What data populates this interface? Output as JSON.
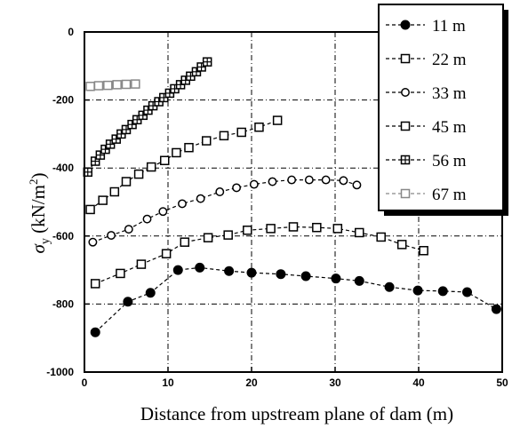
{
  "chart_data": {
    "type": "scatter",
    "xlabel": "Distance from upstream plane of dam (m)",
    "ylabel_symbol": "σ",
    "ylabel_subscript": "y",
    "ylabel_units_prefix": " (kN/m",
    "ylabel_units_sup": "2",
    "ylabel_units_suffix": ")",
    "xlim": [
      0,
      50
    ],
    "ylim": [
      -1000,
      0
    ],
    "x_ticks": [
      "0",
      "10",
      "20",
      "30",
      "40",
      "50"
    ],
    "y_ticks": [
      "0",
      "-200",
      "-400",
      "-600",
      "-800",
      "-1000"
    ],
    "grid": "dash-dot",
    "legend_position": "top-right",
    "series": [
      {
        "name": "11 m",
        "marker": "filled-circle",
        "color": "#000000",
        "x": [
          1.3,
          5.2,
          7.9,
          11.2,
          13.8,
          17.3,
          20.0,
          23.5,
          26.5,
          30.1,
          32.9,
          36.5,
          39.9,
          42.9,
          45.8,
          49.3
        ],
        "y": [
          -883,
          -793,
          -767,
          -700,
          -693,
          -703,
          -708,
          -712,
          -718,
          -725,
          -732,
          -750,
          -760,
          -762,
          -765,
          -815
        ]
      },
      {
        "name": "22 m",
        "marker": "open-square",
        "color": "#000000",
        "x": [
          1.3,
          4.3,
          6.8,
          9.8,
          12.0,
          14.8,
          17.2,
          19.5,
          22.3,
          25.0,
          27.8,
          30.3,
          32.9,
          35.5,
          38.0,
          40.6
        ],
        "y": [
          -740,
          -710,
          -683,
          -652,
          -618,
          -605,
          -597,
          -583,
          -578,
          -573,
          -575,
          -578,
          -590,
          -603,
          -625,
          -643
        ]
      },
      {
        "name": "33 m",
        "marker": "open-circle",
        "color": "#000000",
        "x": [
          1.0,
          3.2,
          5.3,
          7.5,
          9.4,
          11.7,
          13.9,
          16.2,
          18.2,
          20.3,
          22.5,
          24.8,
          26.9,
          28.9,
          31.0,
          32.6
        ],
        "y": [
          -618,
          -598,
          -580,
          -550,
          -528,
          -505,
          -490,
          -470,
          -458,
          -448,
          -440,
          -435,
          -435,
          -435,
          -437,
          -450
        ]
      },
      {
        "name": "45 m",
        "marker": "open-square",
        "color": "#000000",
        "x": [
          0.7,
          2.2,
          3.6,
          5.0,
          6.5,
          8.0,
          9.6,
          11.0,
          12.5,
          14.6,
          16.7,
          18.8,
          20.9,
          23.1
        ],
        "y": [
          -522,
          -495,
          -470,
          -440,
          -418,
          -397,
          -378,
          -355,
          -340,
          -320,
          -305,
          -295,
          -280,
          -260
        ]
      },
      {
        "name": "56 m",
        "marker": "boxed-plus",
        "color": "#000000",
        "x": [
          0.4,
          1.3,
          1.9,
          2.5,
          3.1,
          3.8,
          4.4,
          5.0,
          5.7,
          6.3,
          7.0,
          7.6,
          8.2,
          8.9,
          9.5,
          10.2,
          10.8,
          11.5,
          12.1,
          12.7,
          13.4,
          14.0,
          14.7
        ],
        "y": [
          -412,
          -380,
          -362,
          -345,
          -330,
          -315,
          -300,
          -287,
          -272,
          -258,
          -245,
          -230,
          -217,
          -205,
          -193,
          -180,
          -167,
          -155,
          -142,
          -130,
          -117,
          -103,
          -88
        ]
      },
      {
        "name": "67 m",
        "marker": "open-square",
        "color": "#888888",
        "x": [
          0.7,
          1.7,
          2.8,
          3.9,
          5.0,
          6.1
        ],
        "y": [
          -160,
          -158,
          -157,
          -155,
          -154,
          -153
        ]
      }
    ]
  }
}
